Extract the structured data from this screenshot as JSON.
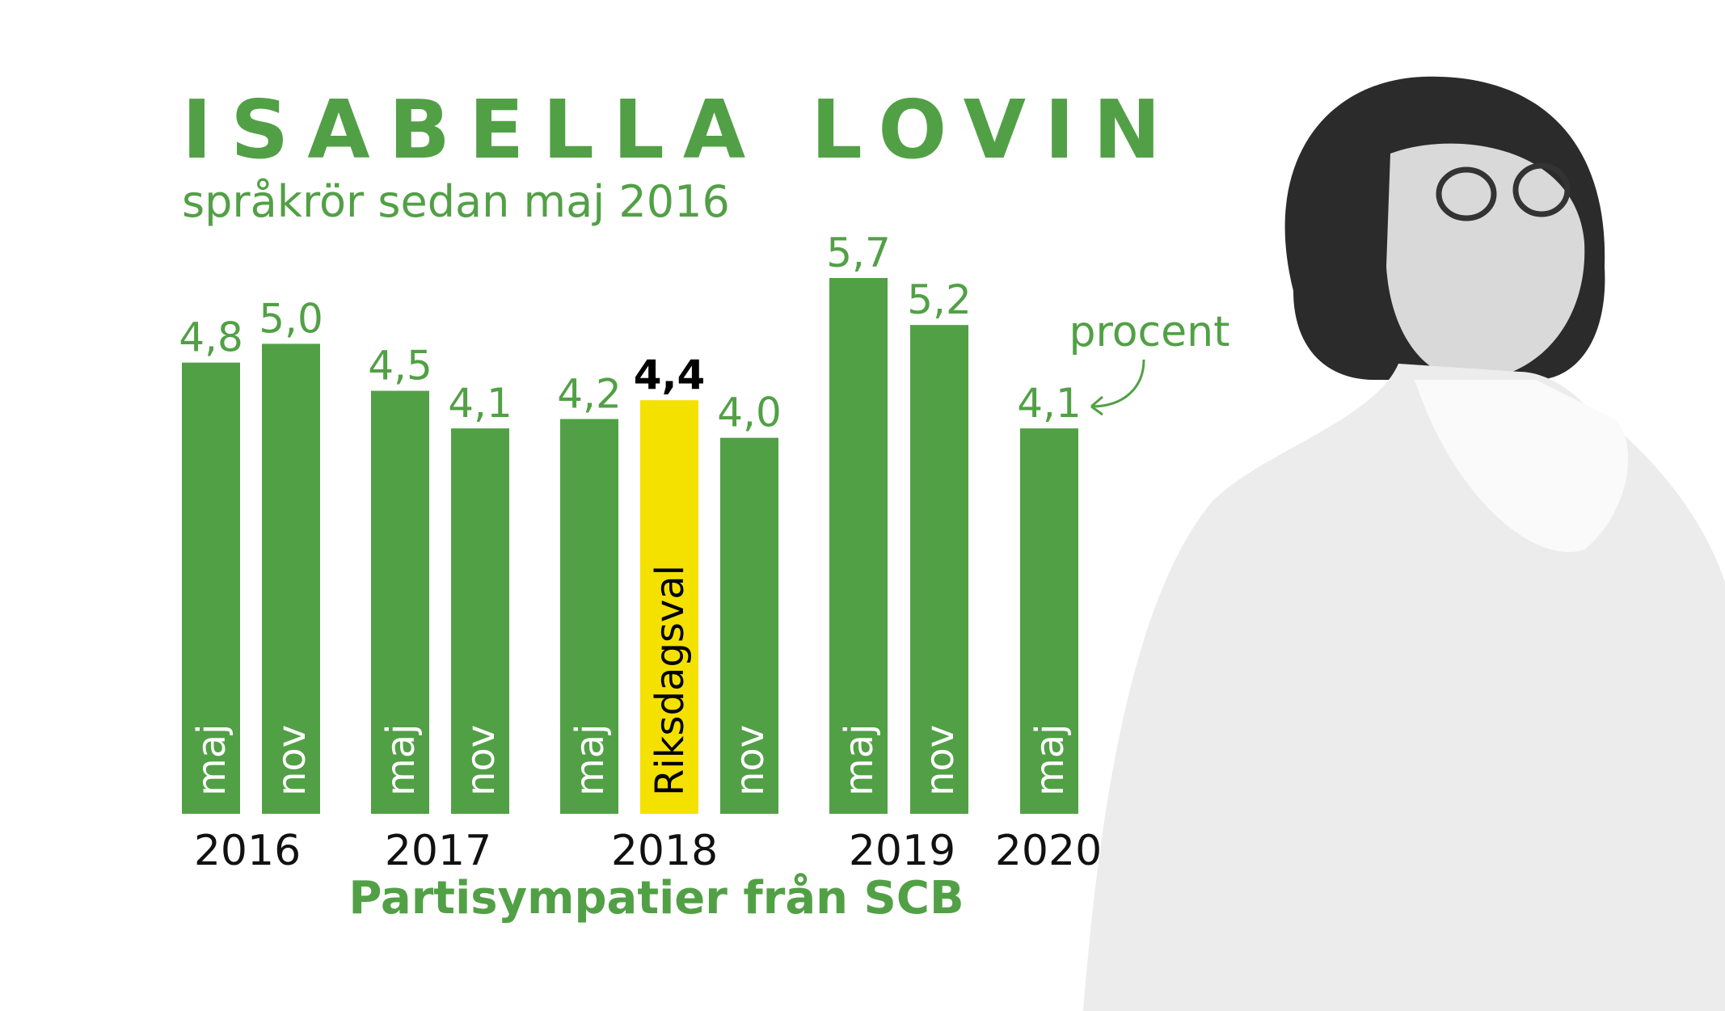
{
  "chart_data": {
    "type": "bar",
    "title": "ISABELLA LOVIN",
    "subtitle": "språkrör sedan maj 2016",
    "x_label": "Partisympatier från SCB",
    "annotation": "procent",
    "categories": [
      "maj",
      "nov",
      "maj",
      "nov",
      "maj",
      "Riksdagsval",
      "nov",
      "maj",
      "nov",
      "maj"
    ],
    "values": [
      4.8,
      5.0,
      4.5,
      4.1,
      4.2,
      4.4,
      4.0,
      5.7,
      5.2,
      4.1
    ],
    "value_labels": [
      "4,8",
      "5,0",
      "4,5",
      "4,1",
      "4,2",
      "4,4",
      "4,0",
      "5,7",
      "5,2",
      "4,1"
    ],
    "years": [
      "2016",
      "2017",
      "2018",
      "2019",
      "2020"
    ],
    "color": "#52a046",
    "colors": [
      "#52a046",
      "#52a046",
      "#52a046",
      "#52a046",
      "#52a046",
      "#f5e100",
      "#52a046",
      "#52a046",
      "#52a046",
      "#52a046"
    ]
  }
}
